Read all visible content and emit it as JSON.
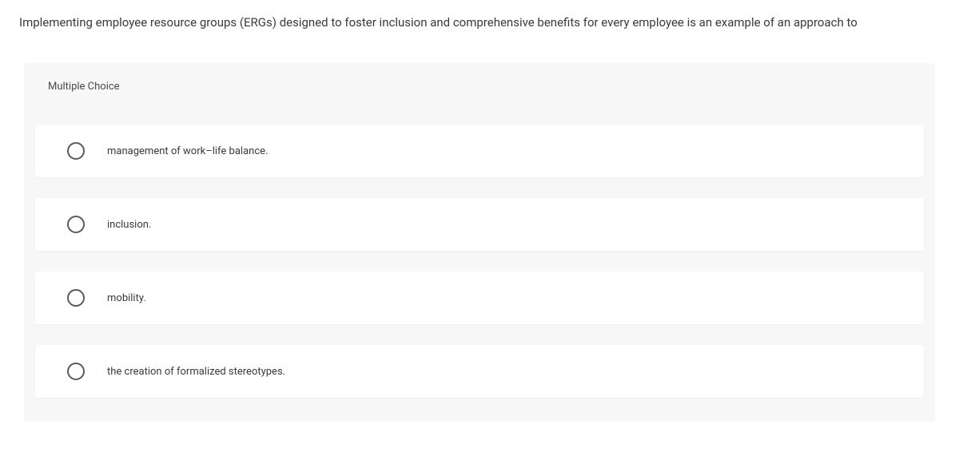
{
  "question": {
    "text": "Implementing employee resource groups (ERGs) designed to foster inclusion and comprehensive benefits for every employee is an example of an approach to"
  },
  "header": {
    "label": "Multiple Choice"
  },
  "options": [
    {
      "label": "management of work–life balance."
    },
    {
      "label": "inclusion."
    },
    {
      "label": "mobility."
    },
    {
      "label": "the creation of formalized stereotypes."
    }
  ],
  "colors": {
    "page_bg": "#ffffff",
    "container_bg": "#f7f7f7",
    "option_bg": "#ffffff",
    "text_primary": "#3a3a3a",
    "radio_border": "#5a5a5a"
  }
}
